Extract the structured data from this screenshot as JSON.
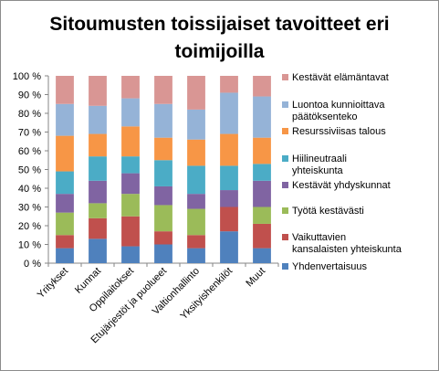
{
  "chart_data": {
    "type": "bar",
    "stacked": true,
    "percent": true,
    "title": "Sitoumusten toissijaiset tavoitteet eri toimijoilla",
    "title_lines": [
      "Sitoumusten toissijaiset tavoitteet eri",
      "toimijoilla"
    ],
    "xlabel": "",
    "ylabel": "",
    "ylim": [
      0,
      100
    ],
    "y_ticks": [
      "0 %",
      "10 %",
      "20 %",
      "30 %",
      "40 %",
      "50 %",
      "60 %",
      "70 %",
      "80 %",
      "90 %",
      "100 %"
    ],
    "grid": false,
    "legend_position": "right",
    "categories": [
      "Yritykset",
      "Kunnat",
      "Oppilaitokset",
      "Etujärjestöt ja puolueet",
      "Valtionhallinto",
      "Yksityishenkilöt",
      "Muut"
    ],
    "series": [
      {
        "name": "Yhdenvertaisuus",
        "color": "#4f81bd",
        "values": [
          8,
          13,
          9,
          10,
          8,
          17,
          8
        ]
      },
      {
        "name": "Vaikuttavien kansalaisten yhteiskunta",
        "color": "#c0504d",
        "values": [
          7,
          11,
          16,
          7,
          7,
          13,
          13
        ]
      },
      {
        "name": "Työtä kestävästi",
        "color": "#9bbb59",
        "values": [
          12,
          8,
          12,
          14,
          14,
          0,
          9
        ]
      },
      {
        "name": "Kestävät yhdyskunnat",
        "color": "#8064a2",
        "values": [
          10,
          12,
          11,
          10,
          8,
          9,
          14
        ]
      },
      {
        "name": "Hiilineutraali yhteiskunta",
        "color": "#4bacc6",
        "values": [
          12,
          13,
          9,
          14,
          15,
          13,
          9
        ]
      },
      {
        "name": "Resurssiviisas talous",
        "color": "#f79646",
        "values": [
          19,
          12,
          16,
          12,
          14,
          17,
          14
        ]
      },
      {
        "name": "Luontoa kunnioittava päätöksenteko",
        "color": "#95b3d7",
        "values": [
          17,
          15,
          15,
          18,
          16,
          22,
          22
        ]
      },
      {
        "name": "Kestävät elämäntavat",
        "color": "#d99694",
        "values": [
          15,
          16,
          12,
          15,
          18,
          9,
          11
        ]
      }
    ],
    "legend_labels": [
      {
        "series": "Kestävät elämäntavat",
        "lines": [
          "Kestävät elämäntavat"
        ]
      },
      {
        "series": "Luontoa kunnioittava päätöksenteko",
        "lines": [
          "Luontoa kunnioittava",
          "päätöksenteko"
        ]
      },
      {
        "series": "Resurssiviisas talous",
        "lines": [
          "Resurssiviisas talous"
        ]
      },
      {
        "series": "Hiilineutraali yhteiskunta",
        "lines": [
          "Hiilineutraali",
          "yhteiskunta"
        ]
      },
      {
        "series": "Kestävät yhdyskunnat",
        "lines": [
          "Kestävät yhdyskunnat"
        ]
      },
      {
        "series": "Työtä kestävästi",
        "lines": [
          "Työtä kestävästi"
        ]
      },
      {
        "series": "Vaikuttavien kansalaisten yhteiskunta",
        "lines": [
          "Vaikuttavien",
          "kansalaisten yhteiskunta"
        ]
      },
      {
        "series": "Yhdenvertaisuus",
        "lines": [
          "Yhdenvertaisuus"
        ]
      }
    ]
  }
}
